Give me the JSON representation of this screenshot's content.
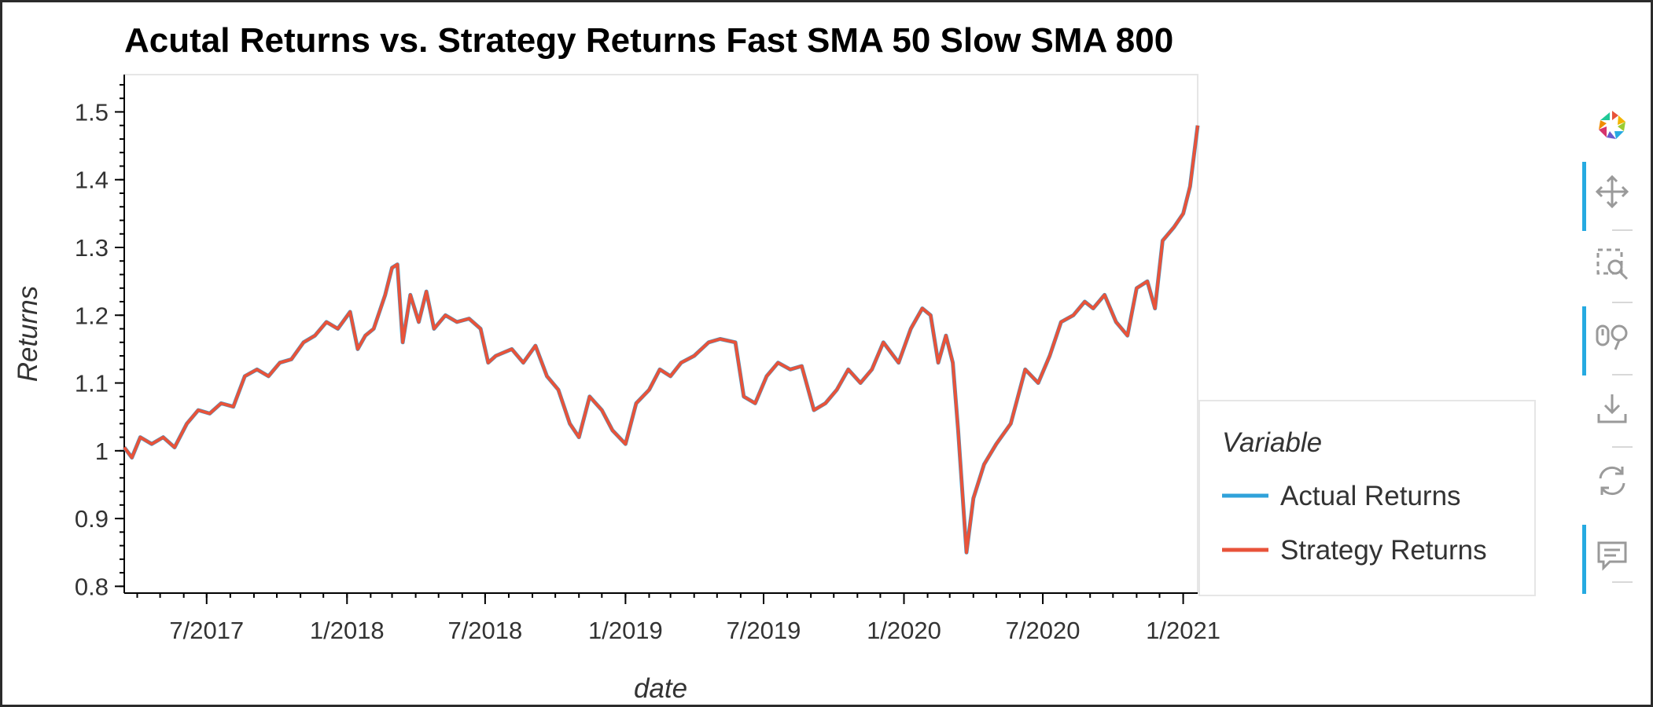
{
  "chart_data": {
    "type": "line",
    "title": "Acutal Returns vs. Strategy Returns Fast SMA 50 Slow SMA 800",
    "xlabel": "date",
    "ylabel": "Returns",
    "ylim": [
      0.79,
      1.555
    ],
    "xlim": [
      "2017-03-15",
      "2021-01-20"
    ],
    "y_ticks": [
      0.8,
      0.9,
      1.0,
      1.1,
      1.2,
      1.3,
      1.4,
      1.5
    ],
    "y_tick_labels": [
      "0.8",
      "0.9",
      "1",
      "1.1",
      "1.2",
      "1.3",
      "1.4",
      "1.5"
    ],
    "x_ticks": [
      "2017-07-01",
      "2018-01-01",
      "2018-07-01",
      "2019-01-01",
      "2019-07-01",
      "2020-01-01",
      "2020-07-01",
      "2021-01-01"
    ],
    "x_tick_labels": [
      "7/2017",
      "1/2018",
      "7/2018",
      "1/2019",
      "7/2019",
      "1/2020",
      "7/2020",
      "1/2021"
    ],
    "grid": false,
    "legend": {
      "title": "Variable",
      "placement": "right"
    },
    "series": [
      {
        "name": "Actual Returns",
        "color": "#30a2da",
        "points": [
          [
            "2017-03-15",
            1.005
          ],
          [
            "2017-03-25",
            0.99
          ],
          [
            "2017-04-05",
            1.02
          ],
          [
            "2017-04-20",
            1.01
          ],
          [
            "2017-05-05",
            1.02
          ],
          [
            "2017-05-20",
            1.005
          ],
          [
            "2017-06-05",
            1.04
          ],
          [
            "2017-06-20",
            1.06
          ],
          [
            "2017-07-05",
            1.055
          ],
          [
            "2017-07-20",
            1.07
          ],
          [
            "2017-08-05",
            1.065
          ],
          [
            "2017-08-20",
            1.11
          ],
          [
            "2017-09-05",
            1.12
          ],
          [
            "2017-09-20",
            1.11
          ],
          [
            "2017-10-05",
            1.13
          ],
          [
            "2017-10-20",
            1.135
          ],
          [
            "2017-11-05",
            1.16
          ],
          [
            "2017-11-20",
            1.17
          ],
          [
            "2017-12-05",
            1.19
          ],
          [
            "2017-12-20",
            1.18
          ],
          [
            "2018-01-05",
            1.205
          ],
          [
            "2018-01-15",
            1.15
          ],
          [
            "2018-01-25",
            1.17
          ],
          [
            "2018-02-05",
            1.18
          ],
          [
            "2018-02-20",
            1.23
          ],
          [
            "2018-03-01",
            1.27
          ],
          [
            "2018-03-08",
            1.275
          ],
          [
            "2018-03-15",
            1.16
          ],
          [
            "2018-03-25",
            1.23
          ],
          [
            "2018-04-05",
            1.19
          ],
          [
            "2018-04-15",
            1.235
          ],
          [
            "2018-04-25",
            1.18
          ],
          [
            "2018-05-10",
            1.2
          ],
          [
            "2018-05-25",
            1.19
          ],
          [
            "2018-06-10",
            1.195
          ],
          [
            "2018-06-25",
            1.18
          ],
          [
            "2018-07-05",
            1.13
          ],
          [
            "2018-07-15",
            1.14
          ],
          [
            "2018-08-05",
            1.15
          ],
          [
            "2018-08-20",
            1.13
          ],
          [
            "2018-09-05",
            1.155
          ],
          [
            "2018-09-20",
            1.11
          ],
          [
            "2018-10-05",
            1.09
          ],
          [
            "2018-10-20",
            1.04
          ],
          [
            "2018-11-01",
            1.02
          ],
          [
            "2018-11-15",
            1.08
          ],
          [
            "2018-12-01",
            1.06
          ],
          [
            "2018-12-15",
            1.03
          ],
          [
            "2019-01-01",
            1.01
          ],
          [
            "2019-01-15",
            1.07
          ],
          [
            "2019-02-01",
            1.09
          ],
          [
            "2019-02-15",
            1.12
          ],
          [
            "2019-03-01",
            1.11
          ],
          [
            "2019-03-15",
            1.13
          ],
          [
            "2019-04-01",
            1.14
          ],
          [
            "2019-04-20",
            1.16
          ],
          [
            "2019-05-05",
            1.165
          ],
          [
            "2019-05-25",
            1.16
          ],
          [
            "2019-06-05",
            1.08
          ],
          [
            "2019-06-20",
            1.07
          ],
          [
            "2019-07-05",
            1.11
          ],
          [
            "2019-07-20",
            1.13
          ],
          [
            "2019-08-05",
            1.12
          ],
          [
            "2019-08-20",
            1.125
          ],
          [
            "2019-09-05",
            1.06
          ],
          [
            "2019-09-20",
            1.07
          ],
          [
            "2019-10-05",
            1.09
          ],
          [
            "2019-10-20",
            1.12
          ],
          [
            "2019-11-05",
            1.1
          ],
          [
            "2019-11-20",
            1.12
          ],
          [
            "2019-12-05",
            1.16
          ],
          [
            "2019-12-25",
            1.13
          ],
          [
            "2020-01-10",
            1.18
          ],
          [
            "2020-01-25",
            1.21
          ],
          [
            "2020-02-05",
            1.2
          ],
          [
            "2020-02-15",
            1.13
          ],
          [
            "2020-02-25",
            1.17
          ],
          [
            "2020-03-05",
            1.13
          ],
          [
            "2020-03-12",
            1.03
          ],
          [
            "2020-03-23",
            0.85
          ],
          [
            "2020-04-01",
            0.93
          ],
          [
            "2020-04-15",
            0.98
          ],
          [
            "2020-05-01",
            1.01
          ],
          [
            "2020-05-20",
            1.04
          ],
          [
            "2020-06-08",
            1.12
          ],
          [
            "2020-06-25",
            1.1
          ],
          [
            "2020-07-10",
            1.14
          ],
          [
            "2020-07-25",
            1.19
          ],
          [
            "2020-08-10",
            1.2
          ],
          [
            "2020-08-25",
            1.22
          ],
          [
            "2020-09-05",
            1.21
          ],
          [
            "2020-09-20",
            1.23
          ],
          [
            "2020-10-05",
            1.19
          ],
          [
            "2020-10-20",
            1.17
          ],
          [
            "2020-11-01",
            1.24
          ],
          [
            "2020-11-15",
            1.25
          ],
          [
            "2020-11-25",
            1.21
          ],
          [
            "2020-12-05",
            1.31
          ],
          [
            "2020-12-20",
            1.33
          ],
          [
            "2021-01-01",
            1.35
          ],
          [
            "2021-01-10",
            1.39
          ],
          [
            "2021-01-20",
            1.48
          ]
        ]
      },
      {
        "name": "Strategy Returns",
        "color": "#e8533a",
        "points": [
          [
            "2017-03-15",
            1.005
          ],
          [
            "2017-03-25",
            0.99
          ],
          [
            "2017-04-05",
            1.02
          ],
          [
            "2017-04-20",
            1.01
          ],
          [
            "2017-05-05",
            1.02
          ],
          [
            "2017-05-20",
            1.005
          ],
          [
            "2017-06-05",
            1.04
          ],
          [
            "2017-06-20",
            1.06
          ],
          [
            "2017-07-05",
            1.055
          ],
          [
            "2017-07-20",
            1.07
          ],
          [
            "2017-08-05",
            1.065
          ],
          [
            "2017-08-20",
            1.11
          ],
          [
            "2017-09-05",
            1.12
          ],
          [
            "2017-09-20",
            1.11
          ],
          [
            "2017-10-05",
            1.13
          ],
          [
            "2017-10-20",
            1.135
          ],
          [
            "2017-11-05",
            1.16
          ],
          [
            "2017-11-20",
            1.17
          ],
          [
            "2017-12-05",
            1.19
          ],
          [
            "2017-12-20",
            1.18
          ],
          [
            "2018-01-05",
            1.205
          ],
          [
            "2018-01-15",
            1.15
          ],
          [
            "2018-01-25",
            1.17
          ],
          [
            "2018-02-05",
            1.18
          ],
          [
            "2018-02-20",
            1.23
          ],
          [
            "2018-03-01",
            1.27
          ],
          [
            "2018-03-08",
            1.275
          ],
          [
            "2018-03-15",
            1.16
          ],
          [
            "2018-03-25",
            1.23
          ],
          [
            "2018-04-05",
            1.19
          ],
          [
            "2018-04-15",
            1.235
          ],
          [
            "2018-04-25",
            1.18
          ],
          [
            "2018-05-10",
            1.2
          ],
          [
            "2018-05-25",
            1.19
          ],
          [
            "2018-06-10",
            1.195
          ],
          [
            "2018-06-25",
            1.18
          ],
          [
            "2018-07-05",
            1.13
          ],
          [
            "2018-07-15",
            1.14
          ],
          [
            "2018-08-05",
            1.15
          ],
          [
            "2018-08-20",
            1.13
          ],
          [
            "2018-09-05",
            1.155
          ],
          [
            "2018-09-20",
            1.11
          ],
          [
            "2018-10-05",
            1.09
          ],
          [
            "2018-10-20",
            1.04
          ],
          [
            "2018-11-01",
            1.02
          ],
          [
            "2018-11-15",
            1.08
          ],
          [
            "2018-12-01",
            1.06
          ],
          [
            "2018-12-15",
            1.03
          ],
          [
            "2019-01-01",
            1.01
          ],
          [
            "2019-01-15",
            1.07
          ],
          [
            "2019-02-01",
            1.09
          ],
          [
            "2019-02-15",
            1.12
          ],
          [
            "2019-03-01",
            1.11
          ],
          [
            "2019-03-15",
            1.13
          ],
          [
            "2019-04-01",
            1.14
          ],
          [
            "2019-04-20",
            1.16
          ],
          [
            "2019-05-05",
            1.165
          ],
          [
            "2019-05-25",
            1.16
          ],
          [
            "2019-06-05",
            1.08
          ],
          [
            "2019-06-20",
            1.07
          ],
          [
            "2019-07-05",
            1.11
          ],
          [
            "2019-07-20",
            1.13
          ],
          [
            "2019-08-05",
            1.12
          ],
          [
            "2019-08-20",
            1.125
          ],
          [
            "2019-09-05",
            1.06
          ],
          [
            "2019-09-20",
            1.07
          ],
          [
            "2019-10-05",
            1.09
          ],
          [
            "2019-10-20",
            1.12
          ],
          [
            "2019-11-05",
            1.1
          ],
          [
            "2019-11-20",
            1.12
          ],
          [
            "2019-12-05",
            1.16
          ],
          [
            "2019-12-25",
            1.13
          ],
          [
            "2020-01-10",
            1.18
          ],
          [
            "2020-01-25",
            1.21
          ],
          [
            "2020-02-05",
            1.2
          ],
          [
            "2020-02-15",
            1.13
          ],
          [
            "2020-02-25",
            1.17
          ],
          [
            "2020-03-05",
            1.13
          ],
          [
            "2020-03-12",
            1.03
          ],
          [
            "2020-03-23",
            0.85
          ],
          [
            "2020-04-01",
            0.93
          ],
          [
            "2020-04-15",
            0.98
          ],
          [
            "2020-05-01",
            1.01
          ],
          [
            "2020-05-20",
            1.04
          ],
          [
            "2020-06-08",
            1.12
          ],
          [
            "2020-06-25",
            1.1
          ],
          [
            "2020-07-10",
            1.14
          ],
          [
            "2020-07-25",
            1.19
          ],
          [
            "2020-08-10",
            1.2
          ],
          [
            "2020-08-25",
            1.22
          ],
          [
            "2020-09-05",
            1.21
          ],
          [
            "2020-09-20",
            1.23
          ],
          [
            "2020-10-05",
            1.19
          ],
          [
            "2020-10-20",
            1.17
          ],
          [
            "2020-11-01",
            1.24
          ],
          [
            "2020-11-15",
            1.25
          ],
          [
            "2020-11-25",
            1.21
          ],
          [
            "2020-12-05",
            1.31
          ],
          [
            "2020-12-20",
            1.33
          ],
          [
            "2021-01-01",
            1.35
          ],
          [
            "2021-01-10",
            1.39
          ],
          [
            "2021-01-20",
            1.48
          ]
        ]
      }
    ]
  },
  "toolbar": {
    "tools": [
      {
        "name": "logo-icon",
        "active": false
      },
      {
        "name": "pan-icon",
        "active": true
      },
      {
        "name": "box-zoom-icon",
        "active": false
      },
      {
        "name": "wheel-zoom-icon",
        "active": true
      },
      {
        "name": "save-icon",
        "active": false
      },
      {
        "name": "reset-icon",
        "active": false
      },
      {
        "name": "hover-icon",
        "active": true
      }
    ]
  }
}
